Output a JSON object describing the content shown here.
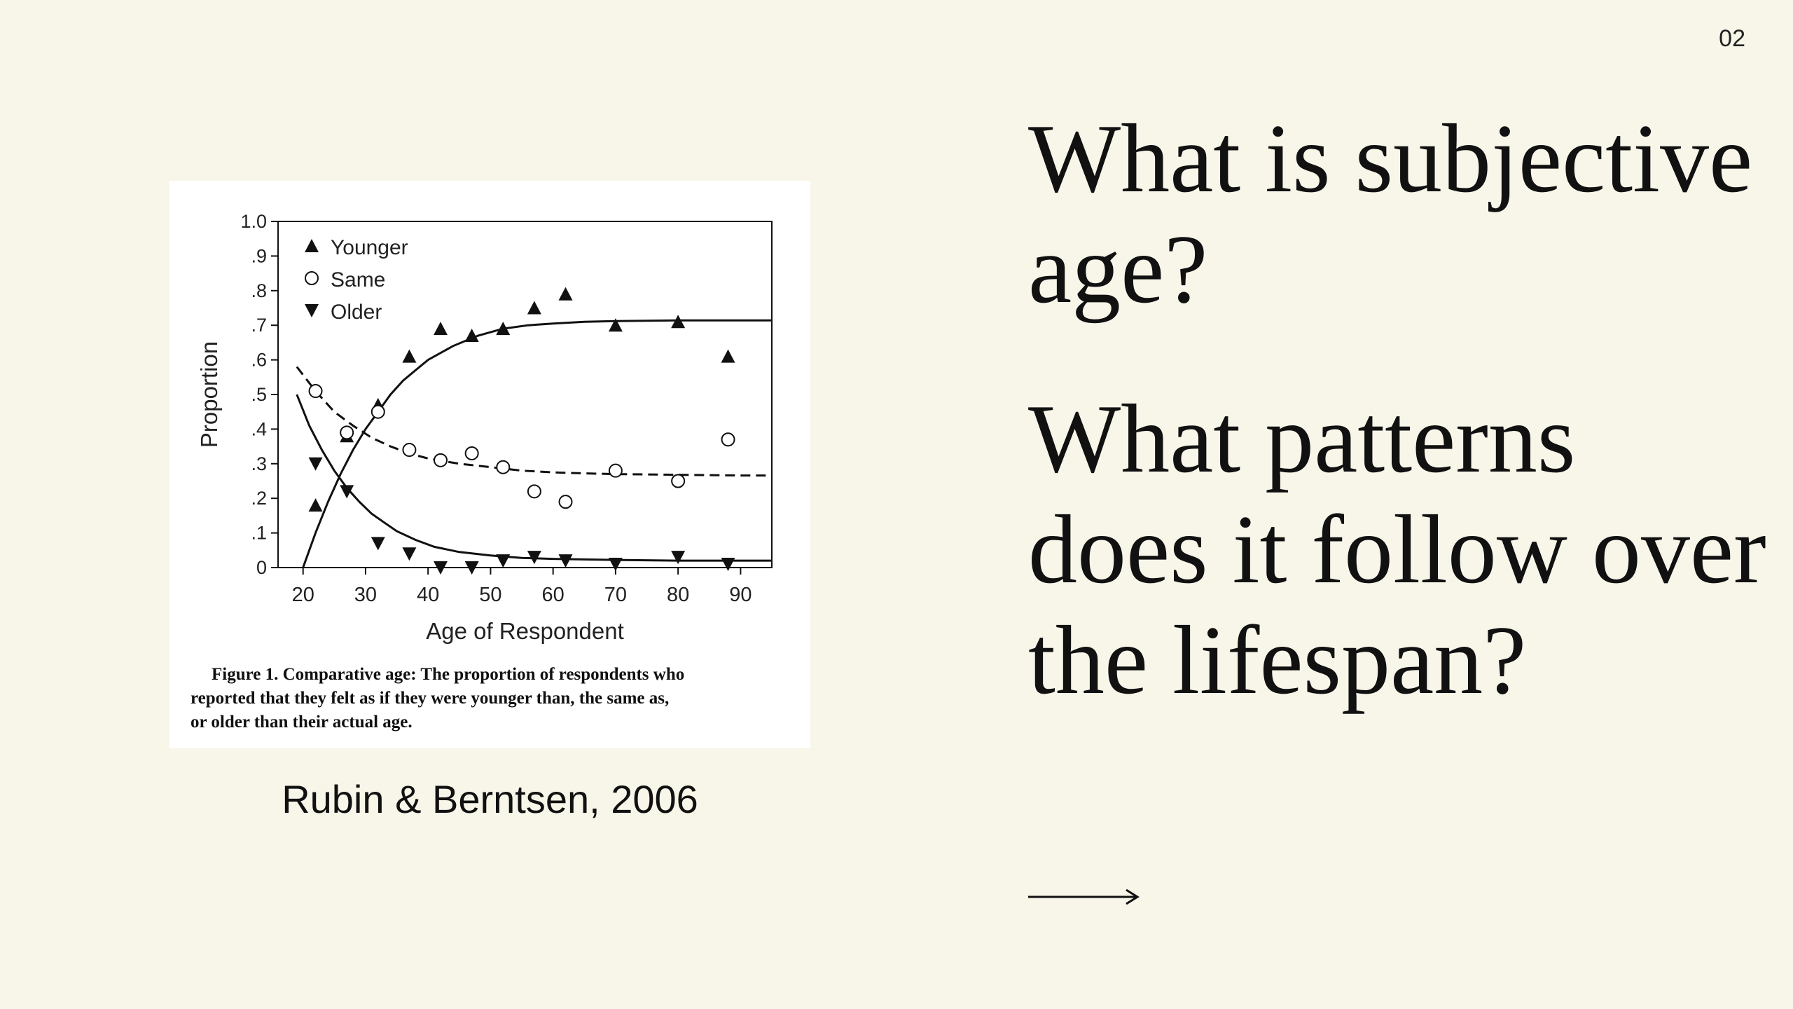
{
  "slide": {
    "page_number": "02",
    "citation": "Rubin & Berntsen, 2006",
    "questions": [
      "What is subjective age?",
      "What patterns does it follow over the lifespan?"
    ],
    "next_icon": "long-right-arrow-icon"
  },
  "figure": {
    "caption_lines": [
      "Figure 1. Comparative age: The proportion of respondents who",
      "reported that they felt as if they were younger than, the same as,",
      "or older than their actual age."
    ]
  },
  "chart_data": {
    "type": "scatter",
    "xlabel": "Age of Respondent",
    "ylabel": "Proportion",
    "xlim": [
      16,
      95
    ],
    "ylim": [
      0,
      1.0
    ],
    "x_ticks": [
      20,
      30,
      40,
      50,
      60,
      70,
      80,
      90
    ],
    "x_tick_labels": [
      "20",
      "30",
      "40",
      "50",
      "60",
      "70",
      "80",
      "90"
    ],
    "y_ticks": [
      0,
      0.1,
      0.2,
      0.3,
      0.4,
      0.5,
      0.6,
      0.7,
      0.8,
      0.9,
      1.0
    ],
    "y_tick_labels": [
      "0",
      ".1",
      ".2",
      ".3",
      ".4",
      ".5",
      ".6",
      ".7",
      ".8",
      ".9",
      "1.0"
    ],
    "legend_position": "top-left",
    "grid": false,
    "series": [
      {
        "name": "Younger",
        "marker": "triangle-up",
        "x": [
          22,
          27,
          32,
          37,
          42,
          47,
          52,
          57,
          62,
          70,
          80,
          88
        ],
        "y": [
          0.18,
          0.38,
          0.47,
          0.61,
          0.69,
          0.67,
          0.69,
          0.75,
          0.79,
          0.7,
          0.71,
          0.61
        ],
        "fit": {
          "style": "solid",
          "x": [
            20,
            22,
            24,
            26,
            28,
            30,
            32,
            34,
            36,
            38,
            40,
            44,
            48,
            52,
            56,
            60,
            65,
            70,
            75,
            80,
            85,
            90,
            95
          ],
          "y": [
            0.0,
            0.1,
            0.19,
            0.27,
            0.34,
            0.4,
            0.45,
            0.5,
            0.54,
            0.57,
            0.6,
            0.64,
            0.67,
            0.69,
            0.7,
            0.705,
            0.71,
            0.712,
            0.713,
            0.714,
            0.714,
            0.714,
            0.714
          ]
        }
      },
      {
        "name": "Same",
        "marker": "circle-open",
        "x": [
          22,
          27,
          32,
          37,
          42,
          47,
          52,
          57,
          62,
          70,
          80,
          88
        ],
        "y": [
          0.51,
          0.39,
          0.45,
          0.34,
          0.31,
          0.33,
          0.29,
          0.22,
          0.19,
          0.28,
          0.25,
          0.37
        ],
        "fit": {
          "style": "dashed",
          "x": [
            19,
            22,
            25,
            28,
            31,
            34,
            37,
            40,
            45,
            50,
            55,
            60,
            65,
            70,
            80,
            90,
            95
          ],
          "y": [
            0.58,
            0.51,
            0.45,
            0.41,
            0.375,
            0.35,
            0.33,
            0.315,
            0.3,
            0.29,
            0.28,
            0.275,
            0.272,
            0.27,
            0.268,
            0.266,
            0.266
          ]
        }
      },
      {
        "name": "Older",
        "marker": "triangle-down",
        "x": [
          22,
          27,
          32,
          37,
          42,
          47,
          52,
          57,
          62,
          70,
          80,
          88
        ],
        "y": [
          0.3,
          0.22,
          0.07,
          0.04,
          0.0,
          0.0,
          0.02,
          0.03,
          0.02,
          0.01,
          0.03,
          0.01
        ],
        "fit": {
          "style": "solid",
          "x": [
            19,
            21,
            23,
            25,
            27,
            29,
            31,
            33,
            35,
            38,
            41,
            45,
            50,
            55,
            60,
            70,
            80,
            90,
            95
          ],
          "y": [
            0.5,
            0.41,
            0.34,
            0.28,
            0.23,
            0.19,
            0.155,
            0.13,
            0.105,
            0.08,
            0.06,
            0.045,
            0.035,
            0.028,
            0.025,
            0.022,
            0.02,
            0.02,
            0.02
          ]
        }
      }
    ]
  }
}
